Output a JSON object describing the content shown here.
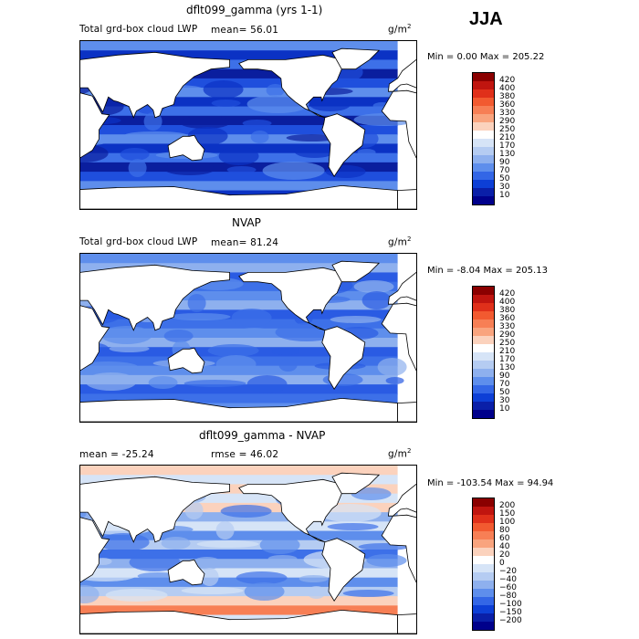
{
  "season": "JJA",
  "panels": [
    {
      "title": "dflt099_gamma (yrs 1-1)",
      "subtitle_left": "Total grd-box cloud LWP",
      "mean_text": "mean=  56.01",
      "units": "g/m",
      "units_sup": "2",
      "minmax": "Min =    0.00 Max = 205.22",
      "colorbar_labels": [
        "420",
        "400",
        "380",
        "360",
        "330",
        "290",
        "250",
        "210",
        "170",
        "130",
        "90",
        "70",
        "50",
        "30",
        "10"
      ],
      "colorbar_colors": [
        "#8b0000",
        "#c0150f",
        "#e0301a",
        "#f25a30",
        "#f77f55",
        "#f9a47e",
        "#fbd2bd",
        "#ffffff",
        "#d6e4f7",
        "#b5ccf2",
        "#8eb0ee",
        "#5e8eec",
        "#3366e6",
        "#0d3fd6",
        "#0a1fa8",
        "#00008b"
      ],
      "field_palette": [
        "#5e8eec",
        "#3d70e8",
        "#1f4fdd",
        "#0b32c4",
        "#0a1e9e"
      ]
    },
    {
      "title": "NVAP",
      "subtitle_left": "Total grd-box cloud LWP",
      "mean_text": "mean=  81.24",
      "units": "g/m",
      "units_sup": "2",
      "minmax": "Min =  -8.04 Max = 205.13",
      "colorbar_labels": [
        "420",
        "400",
        "380",
        "360",
        "330",
        "290",
        "250",
        "210",
        "170",
        "130",
        "90",
        "70",
        "50",
        "30",
        "10"
      ],
      "colorbar_colors": [
        "#8b0000",
        "#c0150f",
        "#e0301a",
        "#f25a30",
        "#f77f55",
        "#f9a47e",
        "#fbd2bd",
        "#ffffff",
        "#d6e4f7",
        "#b5ccf2",
        "#8eb0ee",
        "#5e8eec",
        "#3366e6",
        "#0d3fd6",
        "#0a1fa8",
        "#00008b"
      ],
      "field_palette": [
        "#8eb0ee",
        "#5e8eec",
        "#3d70e8",
        "#2a5be3"
      ]
    },
    {
      "title": "dflt099_gamma - NVAP",
      "subtitle_left": "mean = -25.24",
      "mean_text": "rmse =  46.02",
      "units": "g/m",
      "units_sup": "2",
      "minmax": "Min = -103.54 Max =  94.94",
      "colorbar_labels": [
        "200",
        "150",
        "100",
        "80",
        "60",
        "40",
        "20",
        "0",
        "−20",
        "−40",
        "−60",
        "−80",
        "−100",
        "−150",
        "−200"
      ],
      "colorbar_colors": [
        "#8b0000",
        "#c0150f",
        "#e0301a",
        "#f25a30",
        "#f77f55",
        "#f9a47e",
        "#fbd2bd",
        "#ffffff",
        "#d6e4f7",
        "#b5ccf2",
        "#8eb0ee",
        "#5e8eec",
        "#3366e6",
        "#0d3fd6",
        "#0a1fa8",
        "#00008b"
      ],
      "field_palette": [
        "#d6e4f7",
        "#b5ccf2",
        "#8eb0ee",
        "#5e8eec",
        "#3d70e8"
      ]
    }
  ]
}
